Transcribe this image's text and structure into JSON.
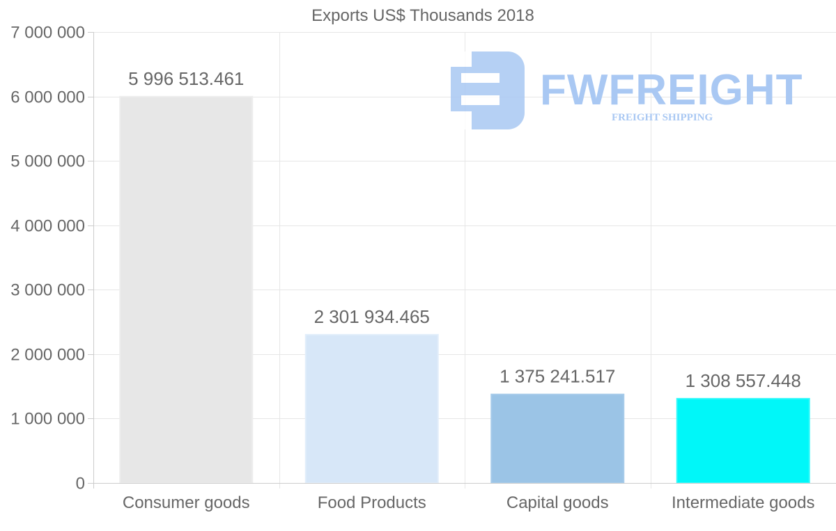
{
  "chart_data": {
    "type": "bar",
    "title": "Exports US$ Thousands 2018",
    "xlabel": "",
    "ylabel": "",
    "ylim": [
      0,
      7000000
    ],
    "yticks": [
      0,
      1000000,
      2000000,
      3000000,
      4000000,
      5000000,
      6000000,
      7000000
    ],
    "ytick_labels": [
      "0",
      "1 000 000",
      "2 000 000",
      "3 000 000",
      "4 000 000",
      "5 000 000",
      "6 000 000",
      "7 000 000"
    ],
    "grid": true,
    "categories": [
      "Consumer goods",
      "Food Products",
      "Capital goods",
      "Intermediate goods"
    ],
    "values": [
      5996513.461,
      2301934.465,
      1375241.517,
      1308557.448
    ],
    "value_labels": [
      "5 996 513.461",
      "2 301 934.465",
      "1 375 241.517",
      "1 308 557.448"
    ],
    "colors": [
      "#e7e7e7",
      "#d7e7f8",
      "#9bc4e6",
      "#00f7f9"
    ],
    "border_colors": [
      "#ededed",
      "#e2eefb",
      "#a6cbea",
      "#33f9fa"
    ]
  },
  "watermark": {
    "brand": "FWFREIGHT",
    "tagline": "FREIGHT SHIPPING",
    "color": "#a9c8f3",
    "icon": "fw-logo-icon"
  }
}
